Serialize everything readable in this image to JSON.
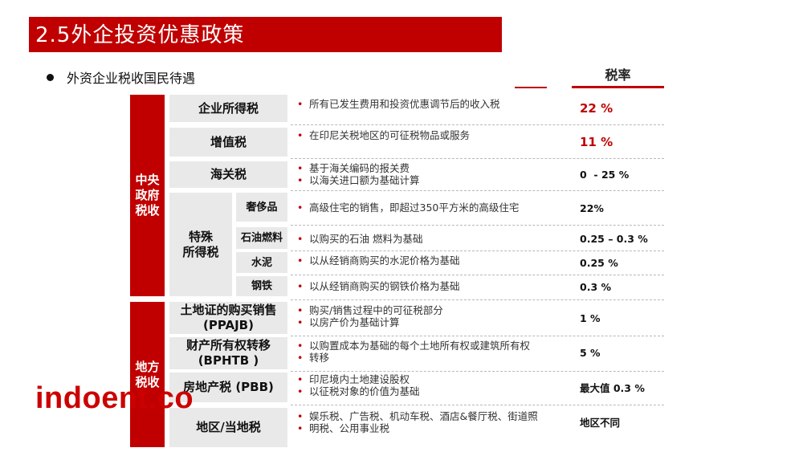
{
  "title": "2.5外企投资优惠政策",
  "subtitle": "外资企业税收国民待遇",
  "rate_header": "税率",
  "side": {
    "central": "中央\n政府\n税收",
    "local": "地方\n税收"
  },
  "special_group": "特殊\n所得税",
  "rows": [
    {
      "name": "企业所得税",
      "desc": [
        "所有已发生费用和投资优惠调节后的收入税"
      ],
      "rate": "22 %"
    },
    {
      "name": "增值税",
      "desc": [
        "在印尼关税地区的可征税物品或服务"
      ],
      "rate": "11 %"
    },
    {
      "name": "海关税",
      "desc": [
        "基于海关编码的报关费",
        "以海关进口额为基础计算"
      ],
      "rate": "0  - 25 %"
    },
    {
      "name": "奢侈品",
      "desc": [
        "高级住宅的销售，即超过350平方米的高级住宅"
      ],
      "rate": "22%"
    },
    {
      "name": "石油燃料",
      "desc": [
        "以购买的石油 燃料为基础"
      ],
      "rate": "0.25 – 0.3 %"
    },
    {
      "name": "水泥",
      "desc": [
        "以从经销商购买的水泥价格为基础"
      ],
      "rate": "0.25 %"
    },
    {
      "name": "钢铁",
      "desc": [
        "以从经销商购买的钢铁价格为基础"
      ],
      "rate": "0.3 %"
    },
    {
      "name": "土地证的购买销售\n(PPAJB)",
      "desc": [
        "购买/销售过程中的可征税部分",
        "以房产价为基础计算"
      ],
      "rate": "1 %"
    },
    {
      "name": "财产所有权转移\n(BPHTB )",
      "desc": [
        "以购置成本为基础的每个土地所有权或建筑所有权",
        "转移"
      ],
      "rate": "5 %"
    },
    {
      "name": "房地产税 (PBB)",
      "desc": [
        "印尼境内土地建设股权",
        "以征税对象的价值为基础"
      ],
      "rate": "最大值 0.3 %"
    },
    {
      "name": "地区/当地税",
      "desc": [
        "娱乐税、广告税、机动车税、酒店&餐厅税、街道照",
        "明税、公用事业税"
      ],
      "rate": "地区不同"
    }
  ],
  "watermark": "indoent.co",
  "colors": {
    "accent": "#c00000",
    "box": "#e9e9e9"
  }
}
